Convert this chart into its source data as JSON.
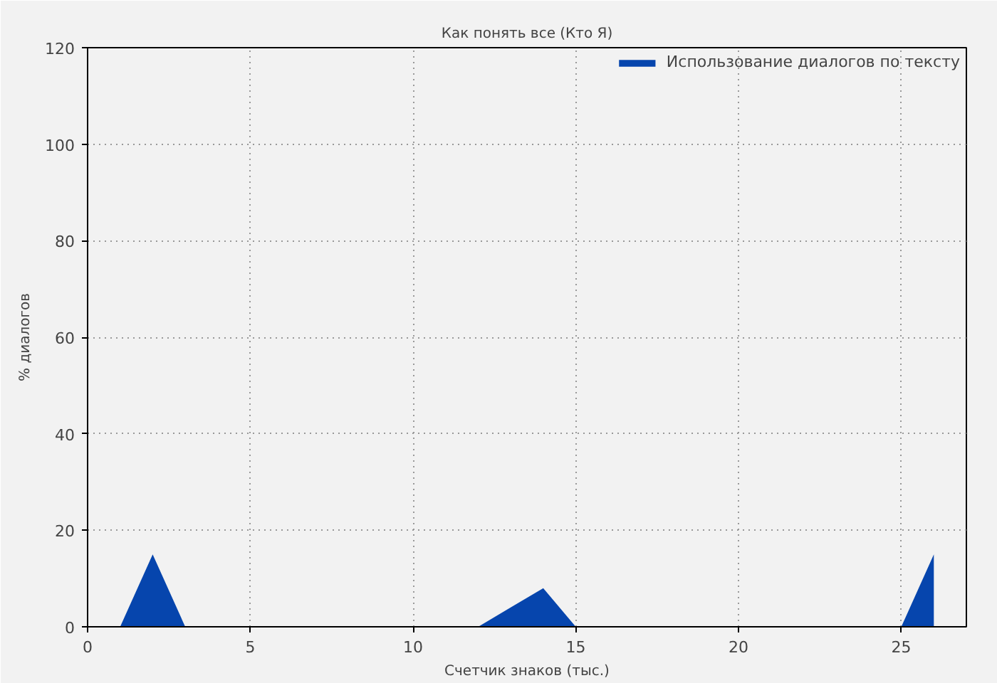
{
  "chart_data": {
    "type": "area",
    "title": "Как понять все (Кто Я)",
    "xlabel": "Счетчик знаков (тыс.)",
    "ylabel": "% диалогов",
    "x": [
      0,
      1,
      2,
      3,
      4,
      5,
      6,
      7,
      8,
      9,
      10,
      11,
      12,
      13,
      14,
      15,
      16,
      17,
      18,
      19,
      20,
      21,
      22,
      23,
      24,
      25,
      26
    ],
    "series": [
      {
        "name": "Использование диалогов по тексту",
        "color": "#0645ad",
        "values": [
          0,
          0,
          15,
          0,
          0,
          0,
          0,
          0,
          0,
          0,
          0,
          0,
          0,
          4,
          8,
          0,
          0,
          0,
          0,
          0,
          0,
          0,
          0,
          0,
          0,
          0,
          15
        ]
      }
    ],
    "xlim": [
      0,
      27
    ],
    "ylim": [
      0,
      120
    ],
    "xticks": [
      0,
      5,
      10,
      15,
      20,
      25
    ],
    "yticks": [
      0,
      20,
      40,
      60,
      80,
      100,
      120
    ],
    "grid": true,
    "legend": "top right"
  }
}
